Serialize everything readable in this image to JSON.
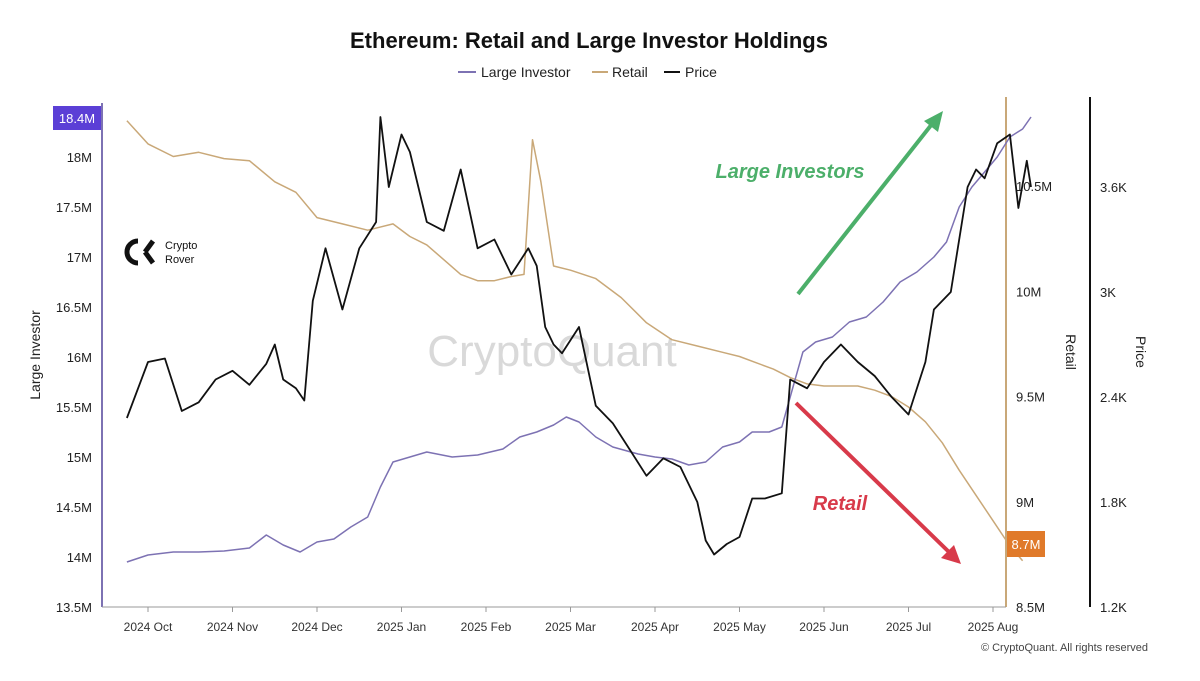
{
  "colors": {
    "large_investor": "#7d72b3",
    "retail": "#c9a878",
    "price": "#111111",
    "large_badge": "#5b3fd6",
    "retail_badge": "#e07a2a",
    "green_arrow": "#4caf6a",
    "red_arrow": "#d83a4a"
  },
  "logo": {
    "name_line1": "Crypto",
    "name_line2": "Rover",
    "icon": "crypto-rover-logo-icon"
  },
  "watermark": "CryptoQuant",
  "copyright": "© CryptoQuant. All rights reserved",
  "annotations": {
    "large_investors": "Large Investors",
    "retail": "Retail"
  },
  "chart_data": {
    "type": "line",
    "title": "Ethereum: Retail and Large Investor Holdings",
    "legend": [
      "Large Investor",
      "Retail",
      "Price"
    ],
    "legend_position": "top-center",
    "grid": false,
    "x_ticks": [
      "2024 Oct",
      "2024 Nov",
      "2024 Dec",
      "2025 Jan",
      "2025 Feb",
      "2025 Mar",
      "2025 Apr",
      "2025 May",
      "2025 Jun",
      "2025 Jul",
      "2025 Aug"
    ],
    "axes": {
      "left": {
        "label": "Large Investor",
        "range": [
          13.5,
          18.4
        ],
        "ticks": [
          "13.5M",
          "14M",
          "14.5M",
          "15M",
          "15.5M",
          "16M",
          "16.5M",
          "17M",
          "17.5M",
          "18M"
        ],
        "last_value_label": "18.4M"
      },
      "right1": {
        "label": "Retail",
        "range": [
          8.5,
          10.85
        ],
        "ticks": [
          "8.5M",
          "9M",
          "9.5M",
          "10M",
          "10.5M"
        ],
        "last_value_label": "8.7M"
      },
      "right2": {
        "label": "Price",
        "range": [
          1200,
          4200
        ],
        "ticks": [
          "1.2K",
          "1.8K",
          "2.4K",
          "3K",
          "3.6K"
        ]
      }
    },
    "x_unit": "months since 2024 Oct",
    "series": [
      {
        "name": "Large Investor",
        "axis": "left",
        "points": [
          [
            -0.25,
            13.95
          ],
          [
            0.0,
            14.02
          ],
          [
            0.3,
            14.05
          ],
          [
            0.6,
            14.05
          ],
          [
            0.9,
            14.06
          ],
          [
            1.2,
            14.09
          ],
          [
            1.4,
            14.22
          ],
          [
            1.6,
            14.12
          ],
          [
            1.8,
            14.05
          ],
          [
            2.0,
            14.15
          ],
          [
            2.2,
            14.18
          ],
          [
            2.4,
            14.3
          ],
          [
            2.6,
            14.4
          ],
          [
            2.75,
            14.7
          ],
          [
            2.9,
            14.95
          ],
          [
            3.1,
            15.0
          ],
          [
            3.3,
            15.05
          ],
          [
            3.6,
            15.0
          ],
          [
            3.9,
            15.02
          ],
          [
            4.2,
            15.08
          ],
          [
            4.4,
            15.2
          ],
          [
            4.6,
            15.25
          ],
          [
            4.8,
            15.32
          ],
          [
            4.95,
            15.4
          ],
          [
            5.1,
            15.35
          ],
          [
            5.3,
            15.2
          ],
          [
            5.5,
            15.1
          ],
          [
            5.8,
            15.03
          ],
          [
            6.0,
            15.0
          ],
          [
            6.2,
            14.98
          ],
          [
            6.4,
            14.92
          ],
          [
            6.6,
            14.95
          ],
          [
            6.8,
            15.1
          ],
          [
            7.0,
            15.15
          ],
          [
            7.15,
            15.25
          ],
          [
            7.35,
            15.25
          ],
          [
            7.5,
            15.3
          ],
          [
            7.65,
            15.75
          ],
          [
            7.75,
            16.05
          ],
          [
            7.9,
            16.15
          ],
          [
            8.1,
            16.2
          ],
          [
            8.3,
            16.35
          ],
          [
            8.5,
            16.4
          ],
          [
            8.7,
            16.55
          ],
          [
            8.9,
            16.75
          ],
          [
            9.1,
            16.85
          ],
          [
            9.3,
            17.0
          ],
          [
            9.45,
            17.15
          ],
          [
            9.6,
            17.5
          ],
          [
            9.75,
            17.7
          ],
          [
            9.9,
            17.85
          ],
          [
            10.05,
            18.0
          ],
          [
            10.2,
            18.2
          ],
          [
            10.35,
            18.28
          ],
          [
            10.45,
            18.4
          ]
        ]
      },
      {
        "name": "Retail",
        "axis": "right1",
        "points": [
          [
            -0.25,
            10.81
          ],
          [
            0.0,
            10.7
          ],
          [
            0.3,
            10.64
          ],
          [
            0.6,
            10.66
          ],
          [
            0.9,
            10.63
          ],
          [
            1.2,
            10.62
          ],
          [
            1.5,
            10.52
          ],
          [
            1.75,
            10.47
          ],
          [
            2.0,
            10.35
          ],
          [
            2.3,
            10.32
          ],
          [
            2.6,
            10.29
          ],
          [
            2.9,
            10.32
          ],
          [
            3.1,
            10.26
          ],
          [
            3.3,
            10.22
          ],
          [
            3.5,
            10.15
          ],
          [
            3.7,
            10.08
          ],
          [
            3.9,
            10.05
          ],
          [
            4.1,
            10.05
          ],
          [
            4.3,
            10.07
          ],
          [
            4.45,
            10.08
          ],
          [
            4.55,
            10.72
          ],
          [
            4.65,
            10.52
          ],
          [
            4.8,
            10.12
          ],
          [
            5.0,
            10.1
          ],
          [
            5.3,
            10.06
          ],
          [
            5.6,
            9.97
          ],
          [
            5.9,
            9.85
          ],
          [
            6.2,
            9.77
          ],
          [
            6.5,
            9.74
          ],
          [
            6.8,
            9.71
          ],
          [
            7.0,
            9.69
          ],
          [
            7.2,
            9.66
          ],
          [
            7.4,
            9.63
          ],
          [
            7.6,
            9.59
          ],
          [
            7.8,
            9.56
          ],
          [
            8.0,
            9.55
          ],
          [
            8.2,
            9.55
          ],
          [
            8.4,
            9.55
          ],
          [
            8.6,
            9.53
          ],
          [
            8.8,
            9.5
          ],
          [
            9.0,
            9.45
          ],
          [
            9.2,
            9.38
          ],
          [
            9.4,
            9.28
          ],
          [
            9.6,
            9.15
          ],
          [
            9.8,
            9.03
          ],
          [
            10.0,
            8.91
          ],
          [
            10.2,
            8.79
          ],
          [
            10.35,
            8.72
          ]
        ]
      },
      {
        "name": "Price",
        "axis": "right2",
        "points": [
          [
            -0.25,
            2280
          ],
          [
            0.0,
            2600
          ],
          [
            0.2,
            2620
          ],
          [
            0.4,
            2320
          ],
          [
            0.6,
            2370
          ],
          [
            0.8,
            2500
          ],
          [
            1.0,
            2550
          ],
          [
            1.2,
            2470
          ],
          [
            1.4,
            2590
          ],
          [
            1.5,
            2700
          ],
          [
            1.6,
            2500
          ],
          [
            1.75,
            2450
          ],
          [
            1.85,
            2380
          ],
          [
            1.95,
            2950
          ],
          [
            2.1,
            3250
          ],
          [
            2.3,
            2900
          ],
          [
            2.5,
            3250
          ],
          [
            2.7,
            3400
          ],
          [
            2.75,
            4000
          ],
          [
            2.85,
            3600
          ],
          [
            3.0,
            3900
          ],
          [
            3.1,
            3800
          ],
          [
            3.3,
            3400
          ],
          [
            3.5,
            3350
          ],
          [
            3.7,
            3700
          ],
          [
            3.9,
            3250
          ],
          [
            4.1,
            3300
          ],
          [
            4.3,
            3100
          ],
          [
            4.5,
            3250
          ],
          [
            4.6,
            3150
          ],
          [
            4.7,
            2800
          ],
          [
            4.8,
            2700
          ],
          [
            4.9,
            2650
          ],
          [
            5.1,
            2800
          ],
          [
            5.3,
            2350
          ],
          [
            5.5,
            2250
          ],
          [
            5.7,
            2100
          ],
          [
            5.9,
            1950
          ],
          [
            6.1,
            2050
          ],
          [
            6.3,
            2000
          ],
          [
            6.5,
            1800
          ],
          [
            6.6,
            1580
          ],
          [
            6.7,
            1500
          ],
          [
            6.85,
            1560
          ],
          [
            7.0,
            1600
          ],
          [
            7.15,
            1820
          ],
          [
            7.3,
            1820
          ],
          [
            7.5,
            1850
          ],
          [
            7.6,
            2500
          ],
          [
            7.8,
            2450
          ],
          [
            8.0,
            2600
          ],
          [
            8.2,
            2700
          ],
          [
            8.4,
            2600
          ],
          [
            8.6,
            2520
          ],
          [
            8.8,
            2400
          ],
          [
            9.0,
            2300
          ],
          [
            9.2,
            2600
          ],
          [
            9.3,
            2900
          ],
          [
            9.5,
            3000
          ],
          [
            9.7,
            3600
          ],
          [
            9.8,
            3700
          ],
          [
            9.9,
            3650
          ],
          [
            10.05,
            3850
          ],
          [
            10.2,
            3900
          ],
          [
            10.3,
            3480
          ],
          [
            10.4,
            3750
          ],
          [
            10.45,
            3600
          ]
        ]
      }
    ]
  }
}
